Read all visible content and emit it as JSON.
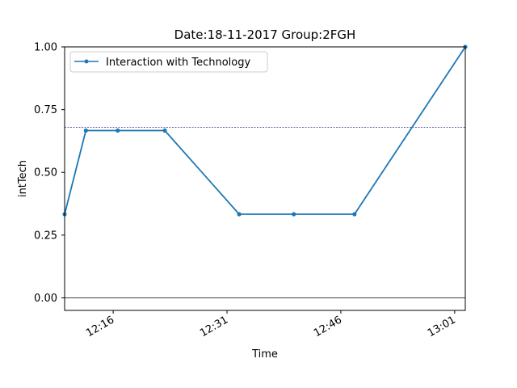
{
  "chart_data": {
    "type": "line",
    "title": "Date:18-11-2017  Group:2FGH",
    "xlabel": "Time",
    "ylabel": "intTech",
    "x_ticks": [
      "12:16",
      "12:31",
      "12:46",
      "13:01"
    ],
    "x_tick_minutes": [
      736,
      751,
      766,
      781
    ],
    "xlim_minutes": [
      729.6,
      782.4
    ],
    "ylim": [
      -0.05,
      1.0
    ],
    "y_ticks": [
      0.0,
      0.25,
      0.5,
      0.75,
      1.0
    ],
    "y_tick_labels": [
      "0.00",
      "0.25",
      "0.50",
      "0.75",
      "1.00"
    ],
    "series": [
      {
        "name": "Interaction with Technology",
        "color": "#1f77b4",
        "x_minutes": [
          729.6,
          732.4,
          736.6,
          742.8,
          752.6,
          759.8,
          767.8,
          782.4
        ],
        "values": [
          0.3333,
          0.6667,
          0.6667,
          0.6667,
          0.3333,
          0.3333,
          0.3333,
          1.0
        ]
      }
    ],
    "hlines": [
      {
        "y": 0.68,
        "style": "dashed",
        "color": "#000080"
      },
      {
        "y": 0.0,
        "style": "solid",
        "color": "#000000"
      }
    ],
    "legend_position": "top-left",
    "grid": false
  }
}
